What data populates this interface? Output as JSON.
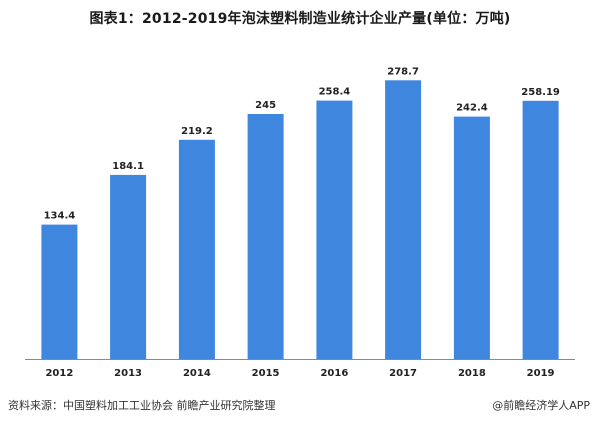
{
  "title": "图表1：2012-2019年泡沫塑料制造业统计企业产量(单位：万吨)",
  "source_label": "资料来源：中国塑料加工工业协会 前瞻产业研究院整理",
  "credit": "@前瞻经济学人APP",
  "colors": {
    "bar": "#3f86df",
    "axis": "#8a8a8a",
    "label": "#222222"
  },
  "chart_data": {
    "type": "bar",
    "categories": [
      "2012",
      "2013",
      "2014",
      "2015",
      "2016",
      "2017",
      "2018",
      "2019"
    ],
    "values": [
      134.4,
      184.1,
      219.2,
      245,
      258.4,
      278.7,
      242.4,
      258.19
    ],
    "value_labels": [
      "134.4",
      "184.1",
      "219.2",
      "245",
      "258.4",
      "278.7",
      "242.4",
      "258.19"
    ],
    "title": "图表1：2012-2019年泡沫塑料制造业统计企业产量(单位：万吨)",
    "unit": "万吨",
    "ylim": [
      0,
      300
    ],
    "grid": false,
    "legend": false
  }
}
